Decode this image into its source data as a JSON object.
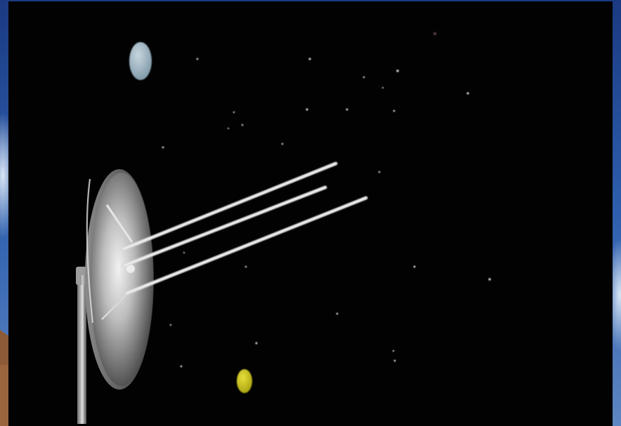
{
  "colors": {
    "frame_background": "#1d3f86",
    "space_background": "#020202",
    "earth_glow": "#9fb4c2",
    "sun_yellow": "#c9c11a",
    "dish_light": "#e9e9e9",
    "dish_dark": "#2a2a2a",
    "signal_beam": "#d8d8d8"
  },
  "scene": {
    "subject": "satellite-dish-transmitting-signals",
    "objects": [
      "satellite-dish",
      "support-mast",
      "signal-beams",
      "blue-planet",
      "yellow-planet",
      "stars"
    ]
  }
}
